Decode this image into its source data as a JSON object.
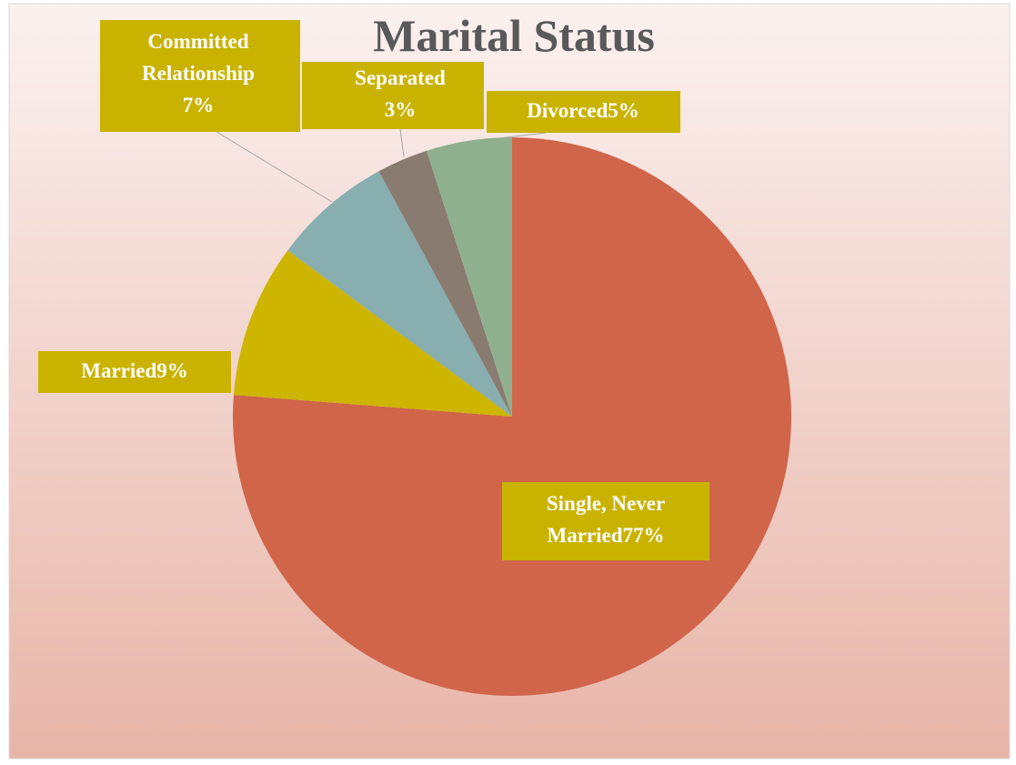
{
  "chart_data": {
    "type": "pie",
    "title": "Marital Status",
    "categories": [
      "Single, Never Married",
      "Married",
      "Committed Relationship",
      "Separated",
      "Divorced"
    ],
    "values": [
      77,
      9,
      7,
      3,
      5
    ],
    "value_labels": [
      "77%",
      "9%",
      "7%",
      "3%",
      "5%"
    ],
    "colors": [
      "#d0654a",
      "#cdb500",
      "#88aeb0",
      "#8a7b70",
      "#8fb08f"
    ],
    "label_color": "#c9b300"
  }
}
